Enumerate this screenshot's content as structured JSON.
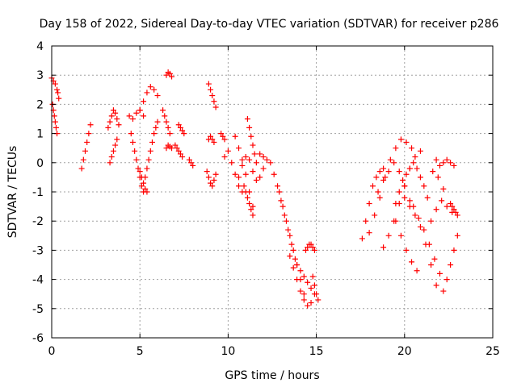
{
  "chart_data": {
    "type": "scatter",
    "title": "Day 158 of 2022, Sidereal Day-to-day VTEC variation (SDTVAR) for receiver p286",
    "xlabel": "GPS time / hours",
    "ylabel": "SDTVAR / TECUs",
    "xlim": [
      0,
      25
    ],
    "ylim": [
      -6,
      4
    ],
    "xticks": [
      0,
      5,
      10,
      15,
      20,
      25
    ],
    "yticks": [
      -6,
      -5,
      -4,
      -3,
      -2,
      -1,
      0,
      1,
      2,
      3,
      4
    ],
    "grid": true,
    "marker": "plus",
    "color": "#ff0000",
    "series": [
      {
        "name": "s1",
        "x": [
          0.0,
          0.1,
          0.2,
          0.3,
          0.35,
          0.4
        ],
        "y": [
          2.9,
          2.8,
          2.7,
          2.5,
          2.4,
          2.2
        ]
      },
      {
        "name": "s2",
        "x": [
          0.05,
          0.1,
          0.15,
          0.2,
          0.25,
          0.3
        ],
        "y": [
          2.0,
          1.8,
          1.6,
          1.4,
          1.2,
          1.0
        ]
      },
      {
        "name": "s3",
        "x": [
          1.7,
          1.8,
          1.9,
          2.0,
          2.1,
          2.2
        ],
        "y": [
          -0.2,
          0.1,
          0.4,
          0.7,
          1.0,
          1.3
        ]
      },
      {
        "name": "s4",
        "x": [
          3.2,
          3.3,
          3.4,
          3.5,
          3.6,
          3.7,
          3.8
        ],
        "y": [
          1.2,
          1.4,
          1.6,
          1.8,
          1.7,
          1.5,
          1.3
        ]
      },
      {
        "name": "s5",
        "x": [
          3.3,
          3.4,
          3.5,
          3.6,
          3.7
        ],
        "y": [
          0.0,
          0.2,
          0.4,
          0.6,
          0.8
        ]
      },
      {
        "name": "s6",
        "x": [
          4.5,
          4.6,
          4.7,
          4.8,
          4.9,
          5.0,
          5.1,
          5.2
        ],
        "y": [
          1.0,
          0.7,
          0.4,
          0.1,
          -0.2,
          -0.5,
          -0.8,
          -1.0
        ]
      },
      {
        "name": "s7",
        "x": [
          4.4,
          4.6,
          4.8,
          5.0,
          5.2
        ],
        "y": [
          1.6,
          1.5,
          1.7,
          1.8,
          1.6
        ]
      },
      {
        "name": "s8",
        "x": [
          5.0,
          5.2,
          5.4,
          5.6,
          5.8,
          6.0
        ],
        "y": [
          1.8,
          2.1,
          2.4,
          2.6,
          2.5,
          2.3
        ]
      },
      {
        "name": "s9",
        "x": [
          5.3,
          5.4,
          5.5,
          5.6,
          5.7,
          5.8,
          5.9,
          6.0
        ],
        "y": [
          -0.5,
          -0.2,
          0.1,
          0.4,
          0.7,
          1.0,
          1.2,
          1.4
        ]
      },
      {
        "name": "s10",
        "x": [
          5.0,
          5.1,
          5.2,
          5.3,
          5.4
        ],
        "y": [
          -0.3,
          -0.5,
          -0.7,
          -0.9,
          -1.0
        ]
      },
      {
        "name": "s11",
        "x": [
          6.5,
          6.6,
          6.7,
          6.8
        ],
        "y": [
          3.0,
          3.1,
          3.05,
          2.95
        ]
      },
      {
        "name": "s12",
        "x": [
          6.3,
          6.4,
          6.5,
          6.6,
          6.7
        ],
        "y": [
          1.8,
          1.6,
          1.4,
          1.2,
          1.0
        ]
      },
      {
        "name": "s13",
        "x": [
          7.2,
          7.3,
          7.4,
          7.5
        ],
        "y": [
          1.3,
          1.2,
          1.1,
          1.0
        ]
      },
      {
        "name": "s14",
        "x": [
          6.5,
          6.6,
          6.7,
          6.8
        ],
        "y": [
          0.5,
          0.6,
          0.55,
          0.5
        ]
      },
      {
        "name": "s15",
        "x": [
          7.0,
          7.1,
          7.2,
          7.3,
          7.4
        ],
        "y": [
          0.6,
          0.5,
          0.4,
          0.3,
          0.2
        ]
      },
      {
        "name": "s16",
        "x": [
          7.8,
          7.9,
          8.0
        ],
        "y": [
          0.1,
          0.0,
          -0.1
        ]
      },
      {
        "name": "s17",
        "x": [
          8.9,
          9.0,
          9.1,
          9.2,
          9.3
        ],
        "y": [
          2.7,
          2.5,
          2.3,
          2.1,
          1.9
        ]
      },
      {
        "name": "s18",
        "x": [
          8.9,
          9.0,
          9.1,
          9.2
        ],
        "y": [
          0.8,
          0.9,
          0.8,
          0.7
        ]
      },
      {
        "name": "s19",
        "x": [
          8.8,
          8.9,
          9.0,
          9.1,
          9.2,
          9.3
        ],
        "y": [
          -0.3,
          -0.5,
          -0.7,
          -0.8,
          -0.6,
          -0.4
        ]
      },
      {
        "name": "s20",
        "x": [
          9.6,
          9.7,
          9.8
        ],
        "y": [
          1.0,
          0.9,
          0.8
        ]
      },
      {
        "name": "s21",
        "x": [
          9.8,
          10.0,
          10.2,
          10.4,
          10.6,
          10.8
        ],
        "y": [
          0.2,
          0.4,
          0.0,
          -0.4,
          -0.8,
          -1.0
        ]
      },
      {
        "name": "s22",
        "x": [
          10.6,
          10.8,
          11.0,
          11.2,
          11.4,
          11.6,
          11.8,
          12.0
        ],
        "y": [
          -0.5,
          -0.1,
          0.2,
          0.1,
          -0.3,
          -0.6,
          -0.5,
          -0.2
        ]
      },
      {
        "name": "s23",
        "x": [
          10.4,
          10.6,
          10.8,
          11.0,
          11.2,
          11.4
        ],
        "y": [
          0.9,
          0.5,
          0.1,
          -0.4,
          -1.0,
          -1.5
        ]
      },
      {
        "name": "s24",
        "x": [
          10.9,
          11.0,
          11.1,
          11.2,
          11.3,
          11.4
        ],
        "y": [
          -0.8,
          -1.0,
          -1.2,
          -1.4,
          -1.6,
          -1.8
        ]
      },
      {
        "name": "s25",
        "x": [
          11.1,
          11.2,
          11.3,
          11.4,
          11.5,
          11.6
        ],
        "y": [
          1.5,
          1.2,
          0.9,
          0.6,
          0.3,
          0.0
        ]
      },
      {
        "name": "s26",
        "x": [
          11.8,
          12.0,
          12.2,
          12.4
        ],
        "y": [
          0.3,
          0.2,
          0.1,
          0.0
        ]
      },
      {
        "name": "s27",
        "x": [
          12.6,
          12.8,
          13.0,
          13.2,
          13.4,
          13.6,
          13.8
        ],
        "y": [
          -0.4,
          -0.8,
          -1.3,
          -1.8,
          -2.3,
          -2.8,
          -3.3
        ]
      },
      {
        "name": "s28",
        "x": [
          12.9,
          13.1,
          13.3,
          13.5,
          13.7,
          13.9,
          14.1,
          14.3
        ],
        "y": [
          -1.0,
          -1.5,
          -2.0,
          -2.5,
          -3.0,
          -3.5,
          -4.0,
          -4.5
        ]
      },
      {
        "name": "s29",
        "x": [
          13.5,
          13.7,
          13.9,
          14.1,
          14.3,
          14.5,
          14.7
        ],
        "y": [
          -3.2,
          -3.6,
          -4.0,
          -4.4,
          -4.7,
          -4.9,
          -4.8
        ]
      },
      {
        "name": "s30",
        "x": [
          13.9,
          14.1,
          14.3,
          14.5,
          14.7,
          14.9
        ],
        "y": [
          -3.5,
          -3.7,
          -3.9,
          -4.1,
          -4.3,
          -4.5
        ]
      },
      {
        "name": "s31",
        "x": [
          14.4,
          14.5,
          14.6,
          14.7,
          14.8,
          14.9
        ],
        "y": [
          -3.0,
          -2.9,
          -2.8,
          -2.8,
          -2.9,
          -3.0
        ]
      },
      {
        "name": "s32",
        "x": [
          14.8,
          14.9,
          15.0,
          15.1
        ],
        "y": [
          -3.9,
          -4.2,
          -4.5,
          -4.7
        ]
      },
      {
        "name": "s33",
        "x": [
          17.6,
          17.8,
          18.0,
          18.2,
          18.4,
          18.6,
          18.8
        ],
        "y": [
          -2.6,
          -2.0,
          -1.4,
          -0.8,
          -0.5,
          -0.3,
          -0.2
        ]
      },
      {
        "name": "s34",
        "x": [
          18.0,
          18.3,
          18.6,
          18.9,
          19.2,
          19.5,
          19.8,
          20.1,
          20.4
        ],
        "y": [
          -2.4,
          -1.8,
          -1.2,
          -0.5,
          0.1,
          0.5,
          0.8,
          0.7,
          0.5
        ]
      },
      {
        "name": "s35",
        "x": [
          18.8,
          19.1,
          19.4,
          19.7,
          20.0,
          20.3,
          20.6,
          20.9
        ],
        "y": [
          -2.9,
          -2.5,
          -2.0,
          -1.4,
          -0.8,
          -0.2,
          0.2,
          0.4
        ]
      },
      {
        "name": "s36",
        "x": [
          18.5,
          18.8,
          19.1,
          19.4,
          19.7,
          20.0,
          20.3
        ],
        "y": [
          -1.0,
          -0.6,
          -0.3,
          0.0,
          -0.3,
          -0.8,
          -1.3
        ]
      },
      {
        "name": "s37",
        "x": [
          19.5,
          19.7,
          19.9,
          20.1,
          20.3,
          20.5,
          20.7,
          20.9,
          21.1,
          21.3
        ],
        "y": [
          -1.4,
          -1.0,
          -0.6,
          -0.4,
          -0.2,
          0.0,
          -0.2,
          -0.5,
          -0.8,
          -1.2
        ]
      },
      {
        "name": "s38",
        "x": [
          20.0,
          20.3,
          20.6,
          20.9,
          21.2,
          21.5,
          21.8
        ],
        "y": [
          -1.2,
          -1.5,
          -1.8,
          -2.2,
          -2.8,
          -3.5,
          -4.2
        ]
      },
      {
        "name": "s39",
        "x": [
          19.5,
          19.8,
          20.1,
          20.4,
          20.7
        ],
        "y": [
          -2.0,
          -2.5,
          -3.0,
          -3.4,
          -3.7
        ]
      },
      {
        "name": "s40",
        "x": [
          20.5,
          20.8,
          21.1,
          21.4,
          21.7,
          22.0
        ],
        "y": [
          -1.5,
          -1.9,
          -2.3,
          -2.8,
          -3.3,
          -3.8
        ]
      },
      {
        "name": "s41",
        "x": [
          21.5,
          21.8,
          22.1,
          22.4,
          22.7
        ],
        "y": [
          -2.0,
          -1.6,
          -1.3,
          -1.5,
          -1.7
        ]
      },
      {
        "name": "s42",
        "x": [
          21.6,
          21.9,
          22.2
        ],
        "y": [
          -0.3,
          -0.5,
          -0.9
        ]
      },
      {
        "name": "s43",
        "x": [
          21.8,
          22.0,
          22.2,
          22.4,
          22.6,
          22.8
        ],
        "y": [
          0.1,
          -0.1,
          0.0,
          0.1,
          0.0,
          -0.1
        ]
      },
      {
        "name": "s44",
        "x": [
          22.2,
          22.4,
          22.6,
          22.8,
          23.0
        ],
        "y": [
          -4.4,
          -4.0,
          -3.5,
          -3.0,
          -2.5
        ]
      },
      {
        "name": "s45",
        "x": [
          22.6,
          22.7,
          22.8,
          22.9,
          23.0
        ],
        "y": [
          -1.4,
          -1.5,
          -1.6,
          -1.7,
          -1.8
        ]
      }
    ]
  }
}
